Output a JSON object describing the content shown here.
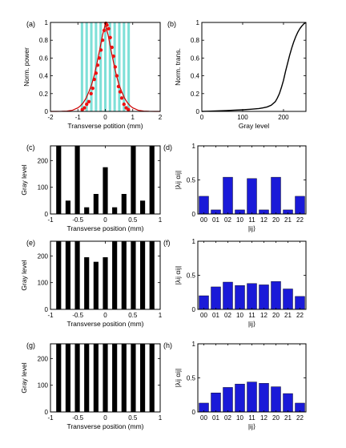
{
  "colors": {
    "stripe": "#7fe0d8",
    "curve": "#cc0000",
    "points": "#ee1111",
    "black": "#000000",
    "blue_bar": "#1a1ad8"
  },
  "chart_data": [
    {
      "panel": "(a)",
      "type": "line",
      "xlabel": "Transverse potition (mm)",
      "ylabel": "Norm. power",
      "xlim": [
        -2,
        2
      ],
      "ylim": [
        0,
        1
      ],
      "xticks": [
        "-2",
        "-1",
        "0",
        "1",
        "2"
      ],
      "yticks": [
        "0",
        "0.2",
        "0.4",
        "0.6",
        "0.8",
        "1"
      ],
      "stripes": {
        "centers": [
          -0.85,
          -0.68,
          -0.51,
          -0.34,
          -0.17,
          0,
          0.17,
          0.34,
          0.51,
          0.68,
          0.85
        ],
        "width": 0.09
      },
      "curve": {
        "x": [
          -2,
          -1.8,
          -1.6,
          -1.4,
          -1.2,
          -1.0,
          -0.9,
          -0.8,
          -0.7,
          -0.6,
          -0.5,
          -0.4,
          -0.3,
          -0.2,
          -0.1,
          0,
          0.1,
          0.2,
          0.3,
          0.4,
          0.5,
          0.6,
          0.7,
          0.8,
          0.9,
          1.0,
          1.2,
          1.4,
          1.6,
          1.8,
          2
        ],
        "y": [
          0,
          0,
          0.001,
          0.004,
          0.013,
          0.04,
          0.065,
          0.1,
          0.15,
          0.22,
          0.3,
          0.41,
          0.55,
          0.7,
          0.86,
          0.98,
          0.86,
          0.7,
          0.55,
          0.41,
          0.3,
          0.22,
          0.15,
          0.1,
          0.065,
          0.04,
          0.013,
          0.004,
          0.001,
          0,
          0
        ]
      },
      "points": {
        "x": [
          -0.84,
          -0.76,
          -0.68,
          -0.6,
          -0.52,
          -0.46,
          -0.4,
          -0.34,
          -0.28,
          -0.22,
          -0.16,
          -0.1,
          -0.04,
          0.02,
          0.06,
          0.12,
          0.18,
          0.24,
          0.3,
          0.36,
          0.42,
          0.48,
          0.54,
          0.6,
          0.68,
          0.76,
          0.84
        ],
        "y": [
          0.02,
          0.04,
          0.08,
          0.11,
          0.2,
          0.26,
          0.36,
          0.43,
          0.52,
          0.6,
          0.69,
          0.8,
          0.91,
          0.99,
          0.97,
          0.93,
          0.83,
          0.72,
          0.62,
          0.5,
          0.4,
          0.28,
          0.22,
          0.15,
          0.08,
          0.04,
          0.02
        ]
      }
    },
    {
      "panel": "(b)",
      "type": "line",
      "xlabel": "Gray level",
      "ylabel": "Norm. trans.",
      "xlim": [
        0,
        255
      ],
      "ylim": [
        0,
        1
      ],
      "xticks": [
        "0",
        "100",
        "200"
      ],
      "xtick_values": [
        0,
        100,
        200
      ],
      "yticks": [
        "0",
        "0.2",
        "0.4",
        "0.6",
        "0.8",
        "1"
      ],
      "x": [
        0,
        20,
        40,
        60,
        80,
        100,
        120,
        140,
        150,
        160,
        170,
        180,
        185,
        190,
        195,
        200,
        205,
        210,
        215,
        220,
        225,
        230,
        235,
        240,
        245,
        250,
        255
      ],
      "y": [
        0,
        0.003,
        0.006,
        0.01,
        0.014,
        0.018,
        0.024,
        0.032,
        0.04,
        0.05,
        0.07,
        0.11,
        0.15,
        0.2,
        0.27,
        0.35,
        0.45,
        0.54,
        0.63,
        0.71,
        0.78,
        0.84,
        0.89,
        0.93,
        0.96,
        0.985,
        1.0
      ]
    },
    {
      "panel": "(c)",
      "type": "bar",
      "xlabel": "Transverse position (mm)",
      "ylabel": "Gray level",
      "xlim": [
        -1,
        1
      ],
      "ylim": [
        0,
        255
      ],
      "xticks": [
        "-1",
        "-0.5",
        "0",
        "0.5",
        "1"
      ],
      "yticks": [
        "0",
        "100",
        "200"
      ],
      "x": [
        -0.85,
        -0.68,
        -0.51,
        -0.34,
        -0.17,
        0,
        0.17,
        0.34,
        0.51,
        0.68,
        0.85
      ],
      "values": [
        255,
        50,
        255,
        25,
        75,
        175,
        25,
        75,
        255,
        50,
        255
      ]
    },
    {
      "panel": "(d)",
      "type": "bar",
      "xlabel": "|ij⟩",
      "ylabel": "|λij αij|",
      "ylim": [
        0,
        1
      ],
      "yticks": [
        "0",
        "0.5",
        "1"
      ],
      "categories": [
        "00",
        "01",
        "02",
        "10",
        "11",
        "12",
        "20",
        "21",
        "22"
      ],
      "values": [
        0.26,
        0.06,
        0.54,
        0.06,
        0.52,
        0.06,
        0.54,
        0.06,
        0.26
      ]
    },
    {
      "panel": "(e)",
      "type": "bar",
      "xlabel": "Transverse position (mm)",
      "ylabel": "Gray level",
      "xlim": [
        -1,
        1
      ],
      "ylim": [
        0,
        255
      ],
      "xticks": [
        "-1",
        "-0.5",
        "0",
        "0.5",
        "1"
      ],
      "yticks": [
        "0",
        "100",
        "200"
      ],
      "x": [
        -0.85,
        -0.68,
        -0.51,
        -0.34,
        -0.17,
        0,
        0.17,
        0.34,
        0.51,
        0.68,
        0.85
      ],
      "values": [
        255,
        255,
        255,
        195,
        178,
        195,
        255,
        255,
        255,
        255,
        255
      ]
    },
    {
      "panel": "(f)",
      "type": "bar",
      "xlabel": "|ij⟩",
      "ylabel": "|λij αij|",
      "ylim": [
        0,
        1
      ],
      "yticks": [
        "0",
        "0.5",
        "1"
      ],
      "categories": [
        "00",
        "01",
        "02",
        "10",
        "11",
        "12",
        "20",
        "21",
        "22"
      ],
      "values": [
        0.2,
        0.33,
        0.4,
        0.35,
        0.38,
        0.36,
        0.41,
        0.3,
        0.19
      ]
    },
    {
      "panel": "(g)",
      "type": "bar",
      "xlabel": "Transverse position (mm)",
      "ylabel": "Gray level",
      "xlim": [
        -1,
        1
      ],
      "ylim": [
        0,
        255
      ],
      "xticks": [
        "-1",
        "-0.5",
        "0",
        "0.5",
        "1"
      ],
      "yticks": [
        "0",
        "100",
        "200"
      ],
      "x": [
        -0.85,
        -0.68,
        -0.51,
        -0.34,
        -0.17,
        0,
        0.17,
        0.34,
        0.51,
        0.68,
        0.85
      ],
      "values": [
        255,
        255,
        255,
        255,
        255,
        255,
        255,
        255,
        255,
        255,
        255
      ]
    },
    {
      "panel": "(h)",
      "type": "bar",
      "xlabel": "|ij⟩",
      "ylabel": "|λij αij|",
      "ylim": [
        0,
        1
      ],
      "yticks": [
        "0",
        "0.5",
        "1"
      ],
      "categories": [
        "00",
        "01",
        "02",
        "10",
        "11",
        "12",
        "20",
        "21",
        "22"
      ],
      "values": [
        0.13,
        0.28,
        0.36,
        0.41,
        0.44,
        0.42,
        0.37,
        0.27,
        0.13
      ]
    }
  ]
}
